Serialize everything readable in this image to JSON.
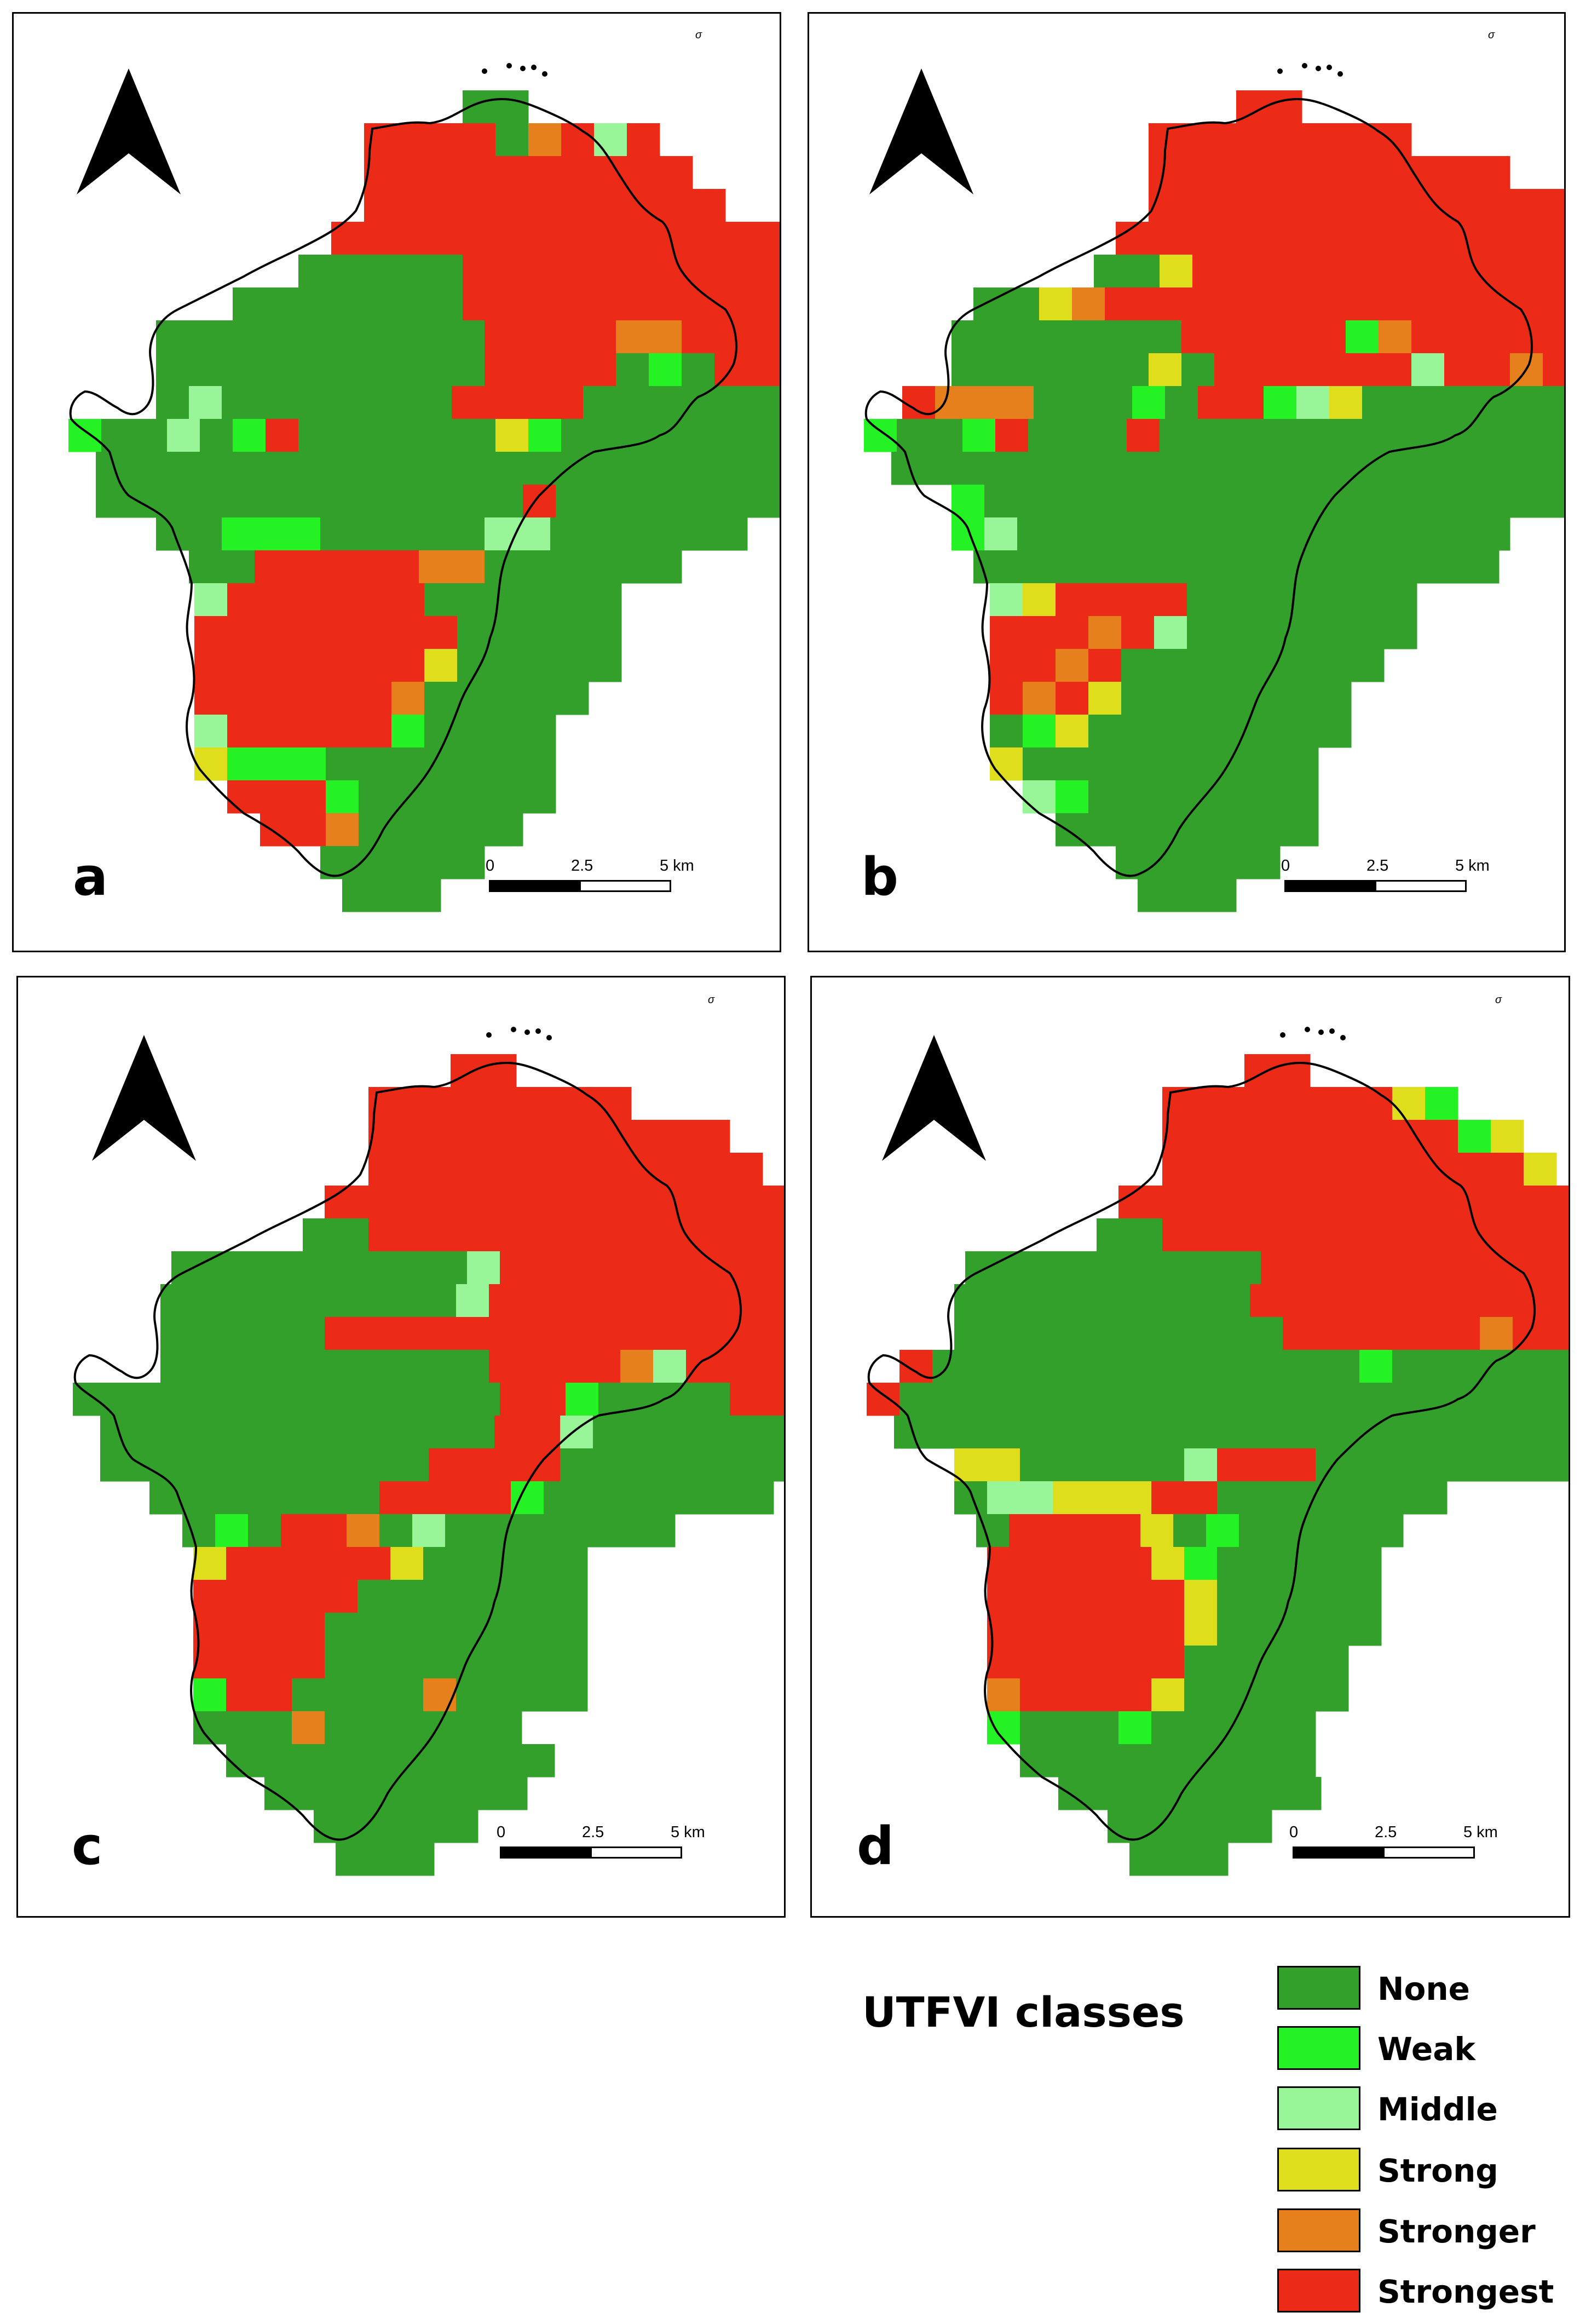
{
  "colors": {
    "none": "#33A02C",
    "weak": "#24F224",
    "middle": "#98F598",
    "strong": "#DEDE1C",
    "stronger": "#E6801C",
    "strongest": "#EB2A17",
    "outline": "#000000"
  },
  "panels": [
    {
      "letter": "a",
      "scale": {
        "t0": "0",
        "t1": "2.5",
        "t2": "5 km"
      },
      "mark": "σ"
    },
    {
      "letter": "b",
      "scale": {
        "t0": "0",
        "t1": "2.5",
        "t2": "5 km"
      },
      "mark": "σ"
    },
    {
      "letter": "c",
      "scale": {
        "t0": "0",
        "t1": "2.5",
        "t2": "5 km"
      },
      "mark": "σ"
    },
    {
      "letter": "d",
      "scale": {
        "t0": "0",
        "t1": "2.5",
        "t2": "5 km"
      },
      "mark": "σ"
    }
  ],
  "legend": {
    "title": "UTFVI classes",
    "items": [
      {
        "label": "None",
        "color": "#33A02C"
      },
      {
        "label": "Weak",
        "color": "#24F224"
      },
      {
        "label": "Middle",
        "color": "#98F598"
      },
      {
        "label": "Strong",
        "color": "#DEDE1C"
      },
      {
        "label": "Stronger",
        "color": "#E6801C"
      },
      {
        "label": "Strongest",
        "color": "#EB2A17"
      }
    ]
  }
}
